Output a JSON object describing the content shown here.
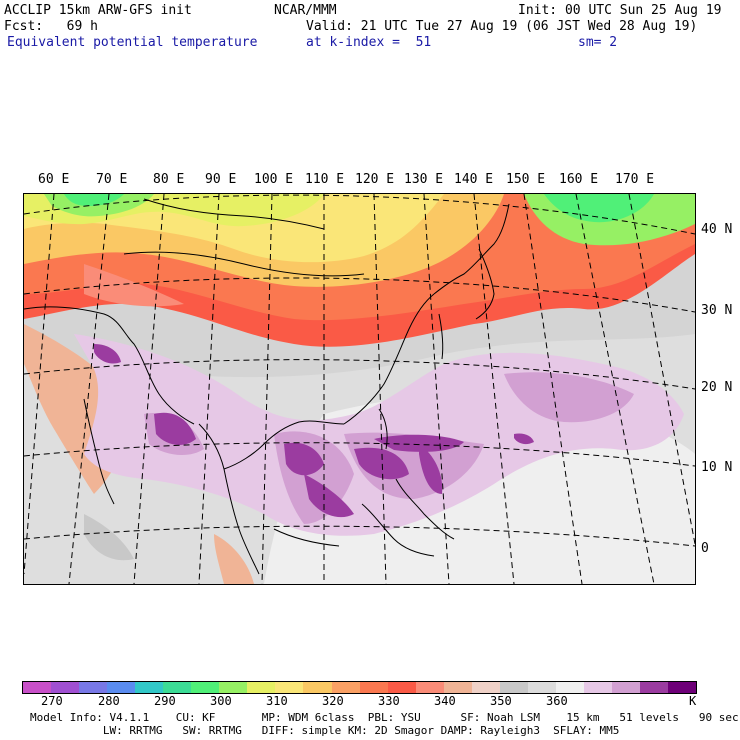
{
  "header": {
    "line1_left": "ACCLIP 15km ARW-GFS init",
    "line1_center": "NCAR/MMM",
    "line1_right": "Init: 00 UTC Sun 25 Aug 19",
    "line2_left": "Fcst:   69 h",
    "line2_right": "Valid: 21 UTC Tue 27 Aug 19 (06 JST Wed 28 Aug 19)",
    "line3_left": "Equivalent potential temperature",
    "line3_center": "at k-index =  51",
    "line3_right": "sm= 2"
  },
  "map": {
    "lon_labels": [
      "60 E",
      "70 E",
      "80 E",
      "90 E",
      "100 E",
      "110 E",
      "120 E",
      "130 E",
      "140 E",
      "150 E",
      "160 E",
      "170 E"
    ],
    "lat_labels": [
      "40 N",
      "30 N",
      "20 N",
      "10 N",
      "0"
    ]
  },
  "colorbar": {
    "colors": [
      "#c850c8",
      "#a050d2",
      "#7878e6",
      "#5a8cf0",
      "#32c8c8",
      "#3cdc96",
      "#50f078",
      "#96f064",
      "#e6f064",
      "#fae678",
      "#fac864",
      "#faa064",
      "#fa7850",
      "#fa5a46",
      "#fa8c78",
      "#f0b496",
      "#f0d2c8",
      "#c8c8c8",
      "#dcdcdc",
      "#f0f0f0",
      "#e6c8e6",
      "#d2a0d2",
      "#9b3ca0",
      "#6e0078"
    ],
    "ticks": [
      "270",
      "280",
      "290",
      "300",
      "310",
      "320",
      "330",
      "340",
      "350",
      "360",
      "K"
    ]
  },
  "footer": {
    "line1": "Model Info: V4.1.1    CU: KF       MP: WDM 6class  PBL: YSU      SF: Noah LSM    15 km   51 levels   90 sec",
    "line2": "           LW: RRTMG   SW: RRTMG   DIFF: simple KM: 2D Smagor DAMP: Rayleigh3  SFLAY: MM5"
  }
}
